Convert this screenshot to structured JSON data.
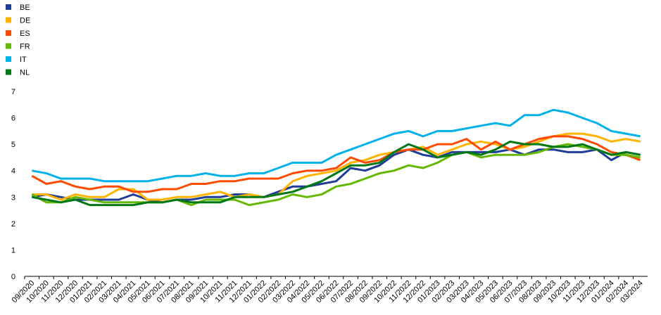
{
  "chart_data": {
    "type": "line",
    "categories": [
      "09/2020",
      "10/2020",
      "11/2020",
      "12/2020",
      "01/2021",
      "02/2021",
      "03/2021",
      "04/2021",
      "05/2021",
      "06/2021",
      "07/2021",
      "08/2021",
      "09/2021",
      "10/2021",
      "11/2021",
      "12/2021",
      "01/2022",
      "02/2022",
      "03/2022",
      "04/2022",
      "05/2022",
      "06/2022",
      "07/2022",
      "08/2022",
      "09/2022",
      "10/2022",
      "11/2022",
      "12/2022",
      "01/2023",
      "02/2023",
      "03/2023",
      "04/2023",
      "05/2023",
      "06/2023",
      "07/2023",
      "08/2023",
      "09/2023",
      "10/2023",
      "11/2023",
      "12/2023",
      "01/2024",
      "02/2024",
      "03/2024"
    ],
    "series": [
      {
        "name": "BE",
        "color": "#1f3c99",
        "values": [
          3.0,
          3.1,
          3.0,
          2.9,
          2.9,
          2.9,
          2.9,
          3.1,
          2.9,
          2.8,
          2.9,
          2.9,
          3.0,
          3.0,
          3.1,
          3.1,
          3.0,
          3.2,
          3.4,
          3.4,
          3.5,
          3.6,
          4.1,
          4.0,
          4.2,
          4.6,
          4.8,
          4.6,
          4.5,
          4.7,
          4.7,
          4.7,
          4.7,
          4.8,
          4.6,
          4.8,
          4.8,
          4.7,
          4.7,
          4.8,
          4.4,
          4.7,
          4.6
        ]
      },
      {
        "name": "DE",
        "color": "#ffb400",
        "values": [
          3.1,
          3.1,
          2.9,
          3.1,
          3.0,
          3.0,
          3.3,
          3.3,
          2.9,
          2.9,
          3.0,
          3.0,
          3.1,
          3.2,
          3.0,
          3.1,
          3.0,
          3.1,
          3.6,
          3.8,
          3.9,
          4.0,
          4.3,
          4.4,
          4.6,
          4.7,
          4.8,
          4.9,
          4.6,
          4.8,
          5.0,
          5.1,
          5.0,
          4.8,
          4.9,
          5.1,
          5.3,
          5.4,
          5.4,
          5.3,
          5.1,
          5.2,
          5.1
        ]
      },
      {
        "name": "ES",
        "color": "#ff4b00",
        "values": [
          3.8,
          3.5,
          3.6,
          3.4,
          3.3,
          3.4,
          3.4,
          3.2,
          3.2,
          3.3,
          3.3,
          3.5,
          3.5,
          3.6,
          3.6,
          3.7,
          3.7,
          3.7,
          3.9,
          4.0,
          4.0,
          4.1,
          4.5,
          4.3,
          4.4,
          4.7,
          4.8,
          4.8,
          5.0,
          5.0,
          5.2,
          4.8,
          5.1,
          4.8,
          5.0,
          5.2,
          5.3,
          5.3,
          5.2,
          5.0,
          4.7,
          4.6,
          4.4
        ]
      },
      {
        "name": "FR",
        "color": "#65b800",
        "values": [
          3.1,
          2.8,
          2.8,
          3.0,
          2.9,
          2.8,
          2.8,
          2.8,
          2.8,
          2.8,
          2.9,
          2.7,
          2.9,
          2.9,
          2.9,
          2.7,
          2.8,
          2.9,
          3.1,
          3.0,
          3.1,
          3.4,
          3.5,
          3.7,
          3.9,
          4.0,
          4.2,
          4.1,
          4.3,
          4.6,
          4.7,
          4.5,
          4.6,
          4.6,
          4.6,
          4.7,
          4.9,
          5.0,
          4.9,
          4.8,
          4.6,
          4.6,
          4.5
        ]
      },
      {
        "name": "IT",
        "color": "#00b1ea",
        "values": [
          4.0,
          3.9,
          3.7,
          3.7,
          3.7,
          3.6,
          3.6,
          3.6,
          3.6,
          3.7,
          3.8,
          3.8,
          3.9,
          3.8,
          3.8,
          3.9,
          3.9,
          4.1,
          4.3,
          4.3,
          4.3,
          4.6,
          4.8,
          5.0,
          5.2,
          5.4,
          5.5,
          5.3,
          5.5,
          5.5,
          5.6,
          5.7,
          5.8,
          5.7,
          6.1,
          6.1,
          6.3,
          6.2,
          6.0,
          5.8,
          5.5,
          5.4,
          5.3
        ]
      },
      {
        "name": "NL",
        "color": "#007816",
        "values": [
          3.0,
          2.9,
          2.8,
          2.9,
          2.7,
          2.7,
          2.7,
          2.7,
          2.8,
          2.8,
          2.9,
          2.8,
          2.8,
          2.8,
          3.0,
          3.0,
          3.0,
          3.1,
          3.2,
          3.4,
          3.6,
          3.9,
          4.2,
          4.2,
          4.3,
          4.7,
          5.0,
          4.8,
          4.5,
          4.6,
          4.7,
          4.6,
          4.8,
          5.1,
          5.0,
          5.0,
          4.9,
          4.9,
          5.0,
          4.8,
          4.6,
          4.7,
          4.6
        ]
      }
    ],
    "ylim": [
      0,
      7
    ],
    "yticks": [
      0,
      1,
      2,
      3,
      4,
      5,
      6,
      7
    ],
    "grid": false,
    "legend": "top-left"
  }
}
